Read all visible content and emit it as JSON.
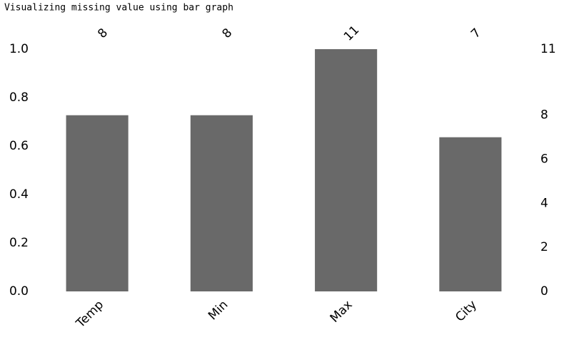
{
  "header": {
    "text": "Visualizing missing value using bar graph"
  },
  "chart_data": {
    "type": "bar",
    "categories": [
      "Temp",
      "Min",
      "Max",
      "City"
    ],
    "ylim": [
      0,
      1
    ],
    "yticks": [
      {
        "value": 0,
        "label": "0.0"
      },
      {
        "value": 0.2,
        "label": "0.2"
      },
      {
        "value": 0.4,
        "label": "0.4"
      },
      {
        "value": 0.6,
        "label": "0.6"
      },
      {
        "value": 0.8,
        "label": "0.8"
      },
      {
        "value": 1,
        "label": "1.0"
      }
    ],
    "y2lim": [
      0,
      11
    ],
    "y2ticks": [
      0,
      2,
      4,
      6,
      8,
      11
    ],
    "series": [
      {
        "color": "#696969",
        "axis": "y2",
        "values": [
          8,
          8,
          11,
          7
        ]
      }
    ],
    "grid": false
  }
}
